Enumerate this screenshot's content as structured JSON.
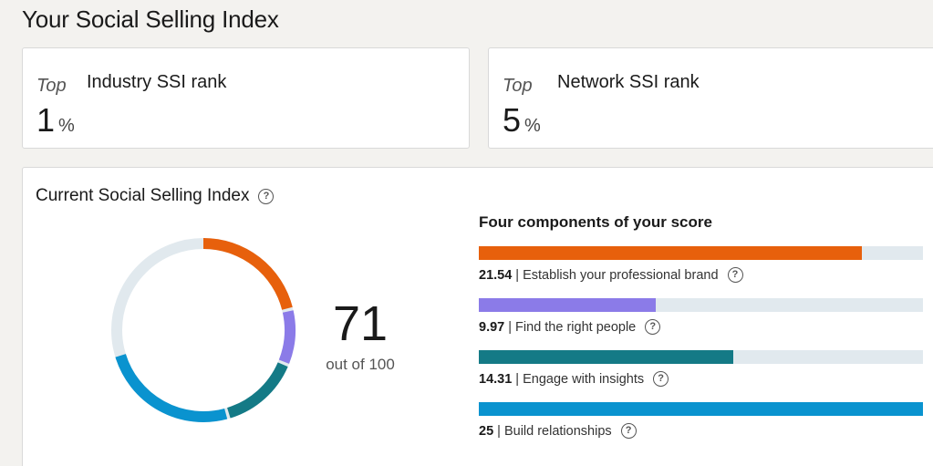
{
  "page": {
    "title": "Your Social Selling Index"
  },
  "industry_rank": {
    "top_label": "Top",
    "label": "Industry SSI rank",
    "value": "1",
    "unit": "%"
  },
  "network_rank": {
    "top_label": "Top",
    "label": "Network SSI rank",
    "value": "5",
    "unit": "%"
  },
  "current": {
    "title": "Current Social Selling Index",
    "help_icon": "?",
    "score": "71",
    "score_sub": "out of 100",
    "max_score": 100
  },
  "components": {
    "title": "Four components of your score",
    "items": [
      {
        "value": "21.54",
        "separator": "|",
        "label": "Establish your professional brand",
        "score": 21.54,
        "max": 25,
        "color": "#e7600c"
      },
      {
        "value": "9.97",
        "separator": "|",
        "label": "Find the right people",
        "score": 9.97,
        "max": 25,
        "color": "#8b7be8"
      },
      {
        "value": "14.31",
        "separator": "|",
        "label": "Engage with insights",
        "score": 14.31,
        "max": 25,
        "color": "#147a86"
      },
      {
        "value": "25",
        "separator": "|",
        "label": "Build relationships",
        "score": 25,
        "max": 25,
        "color": "#0a93cf"
      }
    ]
  },
  "colors": {
    "track": "#e1e9ee"
  }
}
